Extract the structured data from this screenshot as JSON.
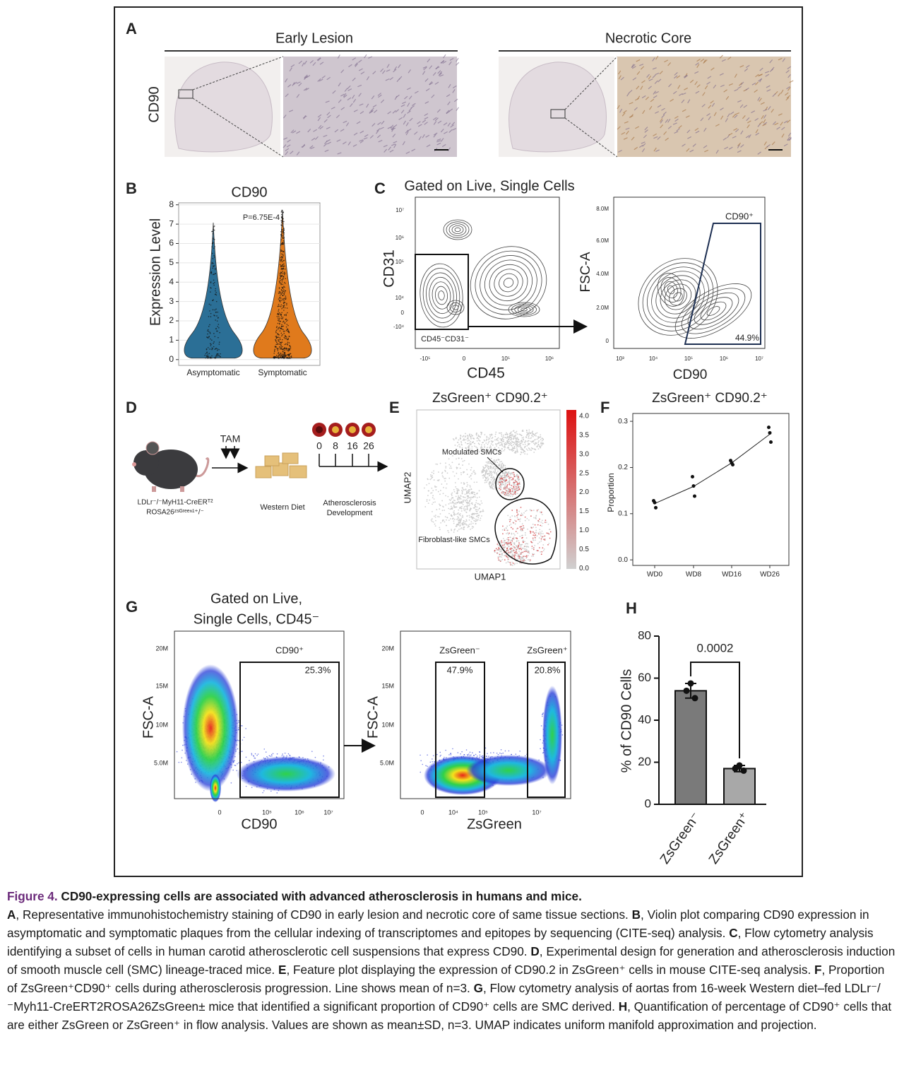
{
  "figure": {
    "A": {
      "label": "A",
      "titles": [
        "Early Lesion",
        "Necrotic Core"
      ],
      "stain": "CD90"
    },
    "B": {
      "label": "B",
      "title": "CD90",
      "ylabel": "Expression Level",
      "pvalue": "P=6.75E-4",
      "categories": [
        "Asymptomatic",
        "Symptomatic"
      ],
      "colors": [
        "#2b6f96",
        "#e07a1c"
      ],
      "ylim": [
        -0.3,
        8.1
      ],
      "yticks": [
        0,
        1,
        2,
        3,
        4,
        5,
        6,
        7,
        8
      ],
      "grid": true
    },
    "C": {
      "label": "C",
      "title": "Gated on Live, Single Cells",
      "left": {
        "xlabel": "CD45",
        "ylabel": "CD31",
        "gate": "CD45⁻CD31⁻",
        "xticks": [
          "-10⁵",
          "0",
          "10⁵",
          "10⁶"
        ],
        "yticks": [
          "10⁷",
          "10⁶",
          "10⁵",
          "10⁴",
          "0",
          "-10⁴"
        ]
      },
      "right": {
        "xlabel": "CD90",
        "ylabel": "FSC-A",
        "gate": "CD90⁺",
        "percent": "44.9%",
        "xticks": [
          "10³",
          "10⁴",
          "10⁵",
          "10⁶",
          "10⁷"
        ],
        "yticks": [
          "8.0M",
          "6.0M",
          "4.0M",
          "2.0M",
          "0"
        ]
      }
    },
    "D": {
      "label": "D",
      "tam": "TAM",
      "genotype": [
        "LDLr⁻/⁻MyH11-CreERᵀ²",
        "ROSA26ᶻˢᴳʳᵉᵉⁿ¹⁺/⁻"
      ],
      "diet": "Western Diet",
      "timepoints": [
        "0",
        "8",
        "16",
        "26"
      ],
      "outcome": [
        "Atherosclerosis",
        "Development"
      ]
    },
    "E": {
      "label": "E",
      "title": "ZsGreen⁺ CD90.2⁺",
      "xlabel": "UMAP1",
      "ylabel": "UMAP2",
      "annotations": [
        "Modulated SMCs",
        "Fibroblast-like SMCs"
      ],
      "colorbar": [
        "4.0",
        "3.5",
        "3.0",
        "2.5",
        "2.0",
        "1.5",
        "1.0",
        "0.5",
        "0.0"
      ]
    },
    "F": {
      "label": "F",
      "type": "scatter",
      "title": "ZsGreen⁺ CD90.2⁺",
      "ylabel": "Proportion",
      "categories": [
        "WD0",
        "WD8",
        "WD16",
        "WD26"
      ],
      "points": [
        [
          0.128,
          0.124,
          0.113
        ],
        [
          0.18,
          0.16,
          0.138
        ],
        [
          0.215,
          0.21,
          0.206
        ],
        [
          0.287,
          0.275,
          0.255
        ]
      ],
      "mean": [
        0.122,
        0.159,
        0.21,
        0.272
      ],
      "ylim": [
        -0.012,
        0.317
      ],
      "yticks": [
        {
          "value": 0,
          "label": "0.0"
        },
        0.1,
        0.2,
        0.3
      ]
    },
    "G": {
      "label": "G",
      "title": [
        "Gated on Live,",
        "Single Cells, CD45⁻"
      ],
      "left": {
        "xlabel": "CD90",
        "ylabel": "FSC-A",
        "gate": "CD90⁺",
        "percent": "25.3%",
        "xticks": [
          "0",
          "10⁵",
          "10⁶",
          "10⁷"
        ],
        "yticks": [
          "20M",
          "15M",
          "10M",
          "5.0M"
        ]
      },
      "right": {
        "xlabel": "ZsGreen",
        "ylabel": "FSC-A",
        "gates": [
          "ZsGreen⁻",
          "ZsGreen⁺"
        ],
        "percents": [
          "47.9%",
          "20.8%"
        ],
        "xticks": [
          "0",
          "10⁴",
          "10⁵",
          "10⁷"
        ],
        "yticks": [
          "20M",
          "15M",
          "10M",
          "5.0M"
        ]
      }
    },
    "H": {
      "label": "H",
      "type": "bar",
      "ylabel": "% of CD90 Cells",
      "annotation": "0.0002",
      "categories": [
        "ZsGreen⁻",
        "ZsGreen⁺"
      ],
      "colors": [
        "#7a7a7a",
        "#a8a8a8"
      ],
      "values": [
        54,
        17
      ],
      "errors": [
        3.5,
        1.5
      ],
      "points": [
        [
          57.5,
          54,
          50.5
        ],
        [
          18.5,
          17,
          16
        ]
      ],
      "ylim": [
        0,
        80
      ],
      "yticks": [
        0,
        20,
        40,
        60,
        80
      ]
    }
  },
  "caption": {
    "figure": "Figure 4.",
    "title": "CD90-expressing cells are associated with advanced atherosclerosis in humans and mice.",
    "segments": [
      {
        "label": "A",
        "text": ", Representative immunohistochemistry staining of CD90 in early lesion and necrotic core of same tissue sections."
      },
      {
        "label": "B",
        "text": ", Violin plot comparing CD90 expression in asymptomatic and symptomatic plaques from the cellular indexing of transcriptomes and epitopes by sequencing (CITE-seq) analysis."
      },
      {
        "label": "C",
        "text": ", Flow cytometry analysis identifying a subset of cells in human carotid atherosclerotic cell suspensions that express CD90."
      },
      {
        "label": "D",
        "text": ", Experimental design for generation and atherosclerosis induction of smooth muscle cell (SMC) lineage-traced mice."
      },
      {
        "label": "E",
        "text": ", Feature plot displaying the expression of CD90.2 in ZsGreen⁺ cells in mouse CITE-seq analysis."
      },
      {
        "label": "F",
        "text": ", Proportion of ZsGreen⁺CD90⁺ cells during atherosclerosis progression. Line shows mean of n=3."
      },
      {
        "label": "G",
        "text": ", Flow cytometry analysis of aortas from 16-week Western diet–fed LDLr⁻/⁻Myh11-CreERT2ROSA26ZsGreen± mice that identified a significant proportion of CD90⁺ cells are SMC derived."
      },
      {
        "label": "H",
        "text": ", Quantification of percentage of CD90⁺ cells that are either ZsGreen or ZsGreen⁺ in flow analysis. Values are shown as mean±SD, n=3. UMAP indicates uniform manifold approximation and projection."
      }
    ]
  }
}
